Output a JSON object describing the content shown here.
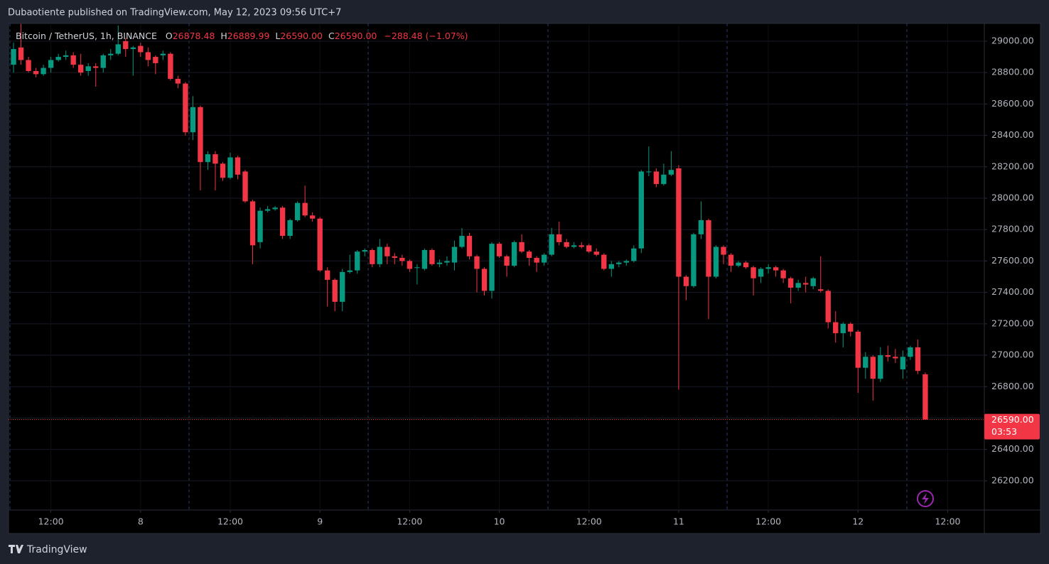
{
  "header": {
    "published": "Dubaotiente published on TradingView.com, May 12, 2023 09:56 UTC+7"
  },
  "footer": {
    "brand": "TradingView"
  },
  "chart_data": {
    "type": "candlestick",
    "symbol": "Bitcoin / TetherUS, 1h, BINANCE",
    "legend": {
      "open_label": "O",
      "open": "26878.48",
      "high_label": "H",
      "high": "26889.99",
      "low_label": "L",
      "low": "26590.00",
      "close_label": "C",
      "close": "26590.00",
      "change": "−288.48 (−1.07%)"
    },
    "up_color": "#089981",
    "down_color": "#f23645",
    "grid": true,
    "ylim": [
      26014,
      29113
    ],
    "yticks": [
      {
        "value": 26200,
        "label": "26200.00"
      },
      {
        "value": 26400,
        "label": "26400.00"
      },
      {
        "value": 26600,
        "label": "26600.00"
      },
      {
        "value": 26800,
        "label": "26800.00"
      },
      {
        "value": 27000,
        "label": "27000.00"
      },
      {
        "value": 27200,
        "label": "27200.00"
      },
      {
        "value": 27400,
        "label": "27400.00"
      },
      {
        "value": 27600,
        "label": "27600.00"
      },
      {
        "value": 27800,
        "label": "27800.00"
      },
      {
        "value": 28000,
        "label": "28000.00"
      },
      {
        "value": 28200,
        "label": "28200.00"
      },
      {
        "value": 28400,
        "label": "28400.00"
      },
      {
        "value": 28600,
        "label": "28600.00"
      },
      {
        "value": 28800,
        "label": "28800.00"
      },
      {
        "value": 29000,
        "label": "29000.00"
      }
    ],
    "xlim": [
      -0.67,
      129.9
    ],
    "xticks": [
      {
        "value": 5,
        "label": "12:00"
      },
      {
        "value": 17,
        "label": "8"
      },
      {
        "value": 29,
        "label": "12:00"
      },
      {
        "value": 41,
        "label": "9"
      },
      {
        "value": 53,
        "label": "12:00"
      },
      {
        "value": 65,
        "label": "10"
      },
      {
        "value": 77,
        "label": "12:00"
      },
      {
        "value": 89,
        "label": "11"
      },
      {
        "value": 101,
        "label": "12:00"
      },
      {
        "value": 113,
        "label": "12"
      },
      {
        "value": 125,
        "label": "12:00"
      }
    ],
    "last_price": {
      "value": 26590,
      "label": "26590.00"
    },
    "countdown": "03:53",
    "open": [
      28850,
      28960,
      28880,
      28810,
      28790,
      28830,
      28880,
      28900,
      28910,
      28850,
      28810,
      28840,
      28830,
      28910,
      28920,
      29000,
      28950,
      28970,
      28930,
      28900,
      28910,
      28920,
      28760,
      28730,
      28420,
      28580,
      28230,
      28280,
      28220,
      28130,
      28260,
      28170,
      27980,
      27720,
      27920,
      27930,
      27940,
      27760,
      27860,
      27970,
      27890,
      27870,
      27540,
      27480,
      27340,
      27530,
      27540,
      27660,
      27670,
      27580,
      27690,
      27630,
      27620,
      27600,
      27560,
      27550,
      27670,
      27580,
      27590,
      27590,
      27690,
      27760,
      27630,
      27550,
      27410,
      27710,
      27630,
      27570,
      27720,
      27660,
      27620,
      27590,
      27640,
      27770,
      27720,
      27690,
      27700,
      27700,
      27660,
      27640,
      27550,
      27580,
      27590,
      27600,
      27680,
      28170,
      28170,
      28090,
      28150,
      28190,
      27500,
      27440,
      27770,
      27860,
      27500,
      27690,
      27640,
      27570,
      27590,
      27560,
      27500,
      27550,
      27560,
      27540,
      27490,
      27430,
      27460,
      27440,
      27420,
      27410,
      27210,
      27140,
      27200,
      27150,
      26920,
      26990,
      26850,
      27000,
      26990,
      26910,
      26990,
      27050,
      26878.48
    ],
    "high": [
      28990,
      29110,
      28900,
      28830,
      28850,
      28900,
      28920,
      28940,
      28930,
      28920,
      28860,
      28860,
      28920,
      28950,
      29100,
      29020,
      28970,
      28990,
      28960,
      28910,
      28940,
      28930,
      28780,
      28740,
      28650,
      28590,
      28300,
      28300,
      28230,
      28290,
      28270,
      28180,
      27990,
      27940,
      27950,
      27950,
      27950,
      27870,
      27980,
      28080,
      27910,
      27880,
      27560,
      27490,
      27550,
      27640,
      27670,
      27680,
      27680,
      27740,
      27710,
      27650,
      27640,
      27610,
      27580,
      27680,
      27680,
      27610,
      27630,
      27730,
      27810,
      27780,
      27640,
      27560,
      27720,
      27720,
      27640,
      27730,
      27770,
      27670,
      27630,
      27650,
      27810,
      27850,
      27740,
      27720,
      27720,
      27710,
      27680,
      27650,
      27600,
      27600,
      27610,
      27700,
      28180,
      28330,
      28190,
      28220,
      28300,
      28210,
      27510,
      27780,
      27980,
      27870,
      27700,
      27700,
      27650,
      27600,
      27600,
      27570,
      27560,
      27580,
      27570,
      27550,
      27500,
      27480,
      27500,
      27500,
      27630,
      27420,
      27280,
      27210,
      27210,
      27160,
      27020,
      27000,
      27050,
      27060,
      27040,
      27030,
      27060,
      27100,
      26889.99
    ],
    "low": [
      28800,
      28850,
      28800,
      28770,
      28780,
      28800,
      28870,
      28880,
      28830,
      28780,
      28780,
      28710,
      28800,
      28880,
      28910,
      28900,
      28780,
      28900,
      28840,
      28790,
      28880,
      28750,
      28700,
      28400,
      28370,
      28050,
      28180,
      28050,
      28110,
      28120,
      28120,
      27970,
      27580,
      27680,
      27910,
      27920,
      27740,
      27740,
      27850,
      27880,
      27850,
      27530,
      27310,
      27280,
      27280,
      27520,
      27520,
      27630,
      27560,
      27560,
      27580,
      27580,
      27570,
      27530,
      27450,
      27540,
      27570,
      27560,
      27570,
      27540,
      27680,
      27610,
      27400,
      27380,
      27360,
      27620,
      27500,
      27560,
      27650,
      27570,
      27530,
      27570,
      27630,
      27700,
      27680,
      27680,
      27680,
      27650,
      27630,
      27540,
      27500,
      27560,
      27570,
      27590,
      27650,
      28140,
      28070,
      28080,
      28140,
      26780,
      27350,
      27430,
      27740,
      27230,
      27490,
      27580,
      27530,
      27560,
      27550,
      27380,
      27460,
      27520,
      27500,
      27460,
      27330,
      27410,
      27400,
      27420,
      27400,
      27170,
      27080,
      27050,
      27120,
      26760,
      26850,
      26710,
      26830,
      26960,
      26950,
      26850,
      26970,
      26880,
      26590
    ],
    "close": [
      28950,
      28880,
      28810,
      28790,
      28830,
      28880,
      28900,
      28910,
      28850,
      28800,
      28840,
      28830,
      28910,
      28920,
      28980,
      28950,
      28960,
      28930,
      28880,
      28860,
      28920,
      28760,
      28730,
      28420,
      28580,
      28230,
      28280,
      28220,
      28130,
      28260,
      28150,
      27980,
      27700,
      27920,
      27930,
      27940,
      27760,
      27860,
      27970,
      27890,
      27870,
      27540,
      27480,
      27340,
      27530,
      27540,
      27660,
      27670,
      27580,
      27690,
      27630,
      27620,
      27600,
      27550,
      27560,
      27670,
      27580,
      27590,
      27600,
      27690,
      27760,
      27630,
      27550,
      27410,
      27710,
      27630,
      27570,
      27720,
      27660,
      27620,
      27590,
      27640,
      27770,
      27720,
      27690,
      27700,
      27690,
      27660,
      27640,
      27550,
      27580,
      27590,
      27600,
      27680,
      28170,
      28170,
      28090,
      28150,
      28180,
      27500,
      27440,
      27770,
      27860,
      27500,
      27690,
      27640,
      27570,
      27590,
      27560,
      27490,
      27550,
      27560,
      27540,
      27490,
      27430,
      27460,
      27450,
      27490,
      27410,
      27210,
      27140,
      27200,
      27150,
      26920,
      26990,
      26850,
      27000,
      26990,
      26980,
      26990,
      27050,
      26900,
      26590
    ]
  }
}
